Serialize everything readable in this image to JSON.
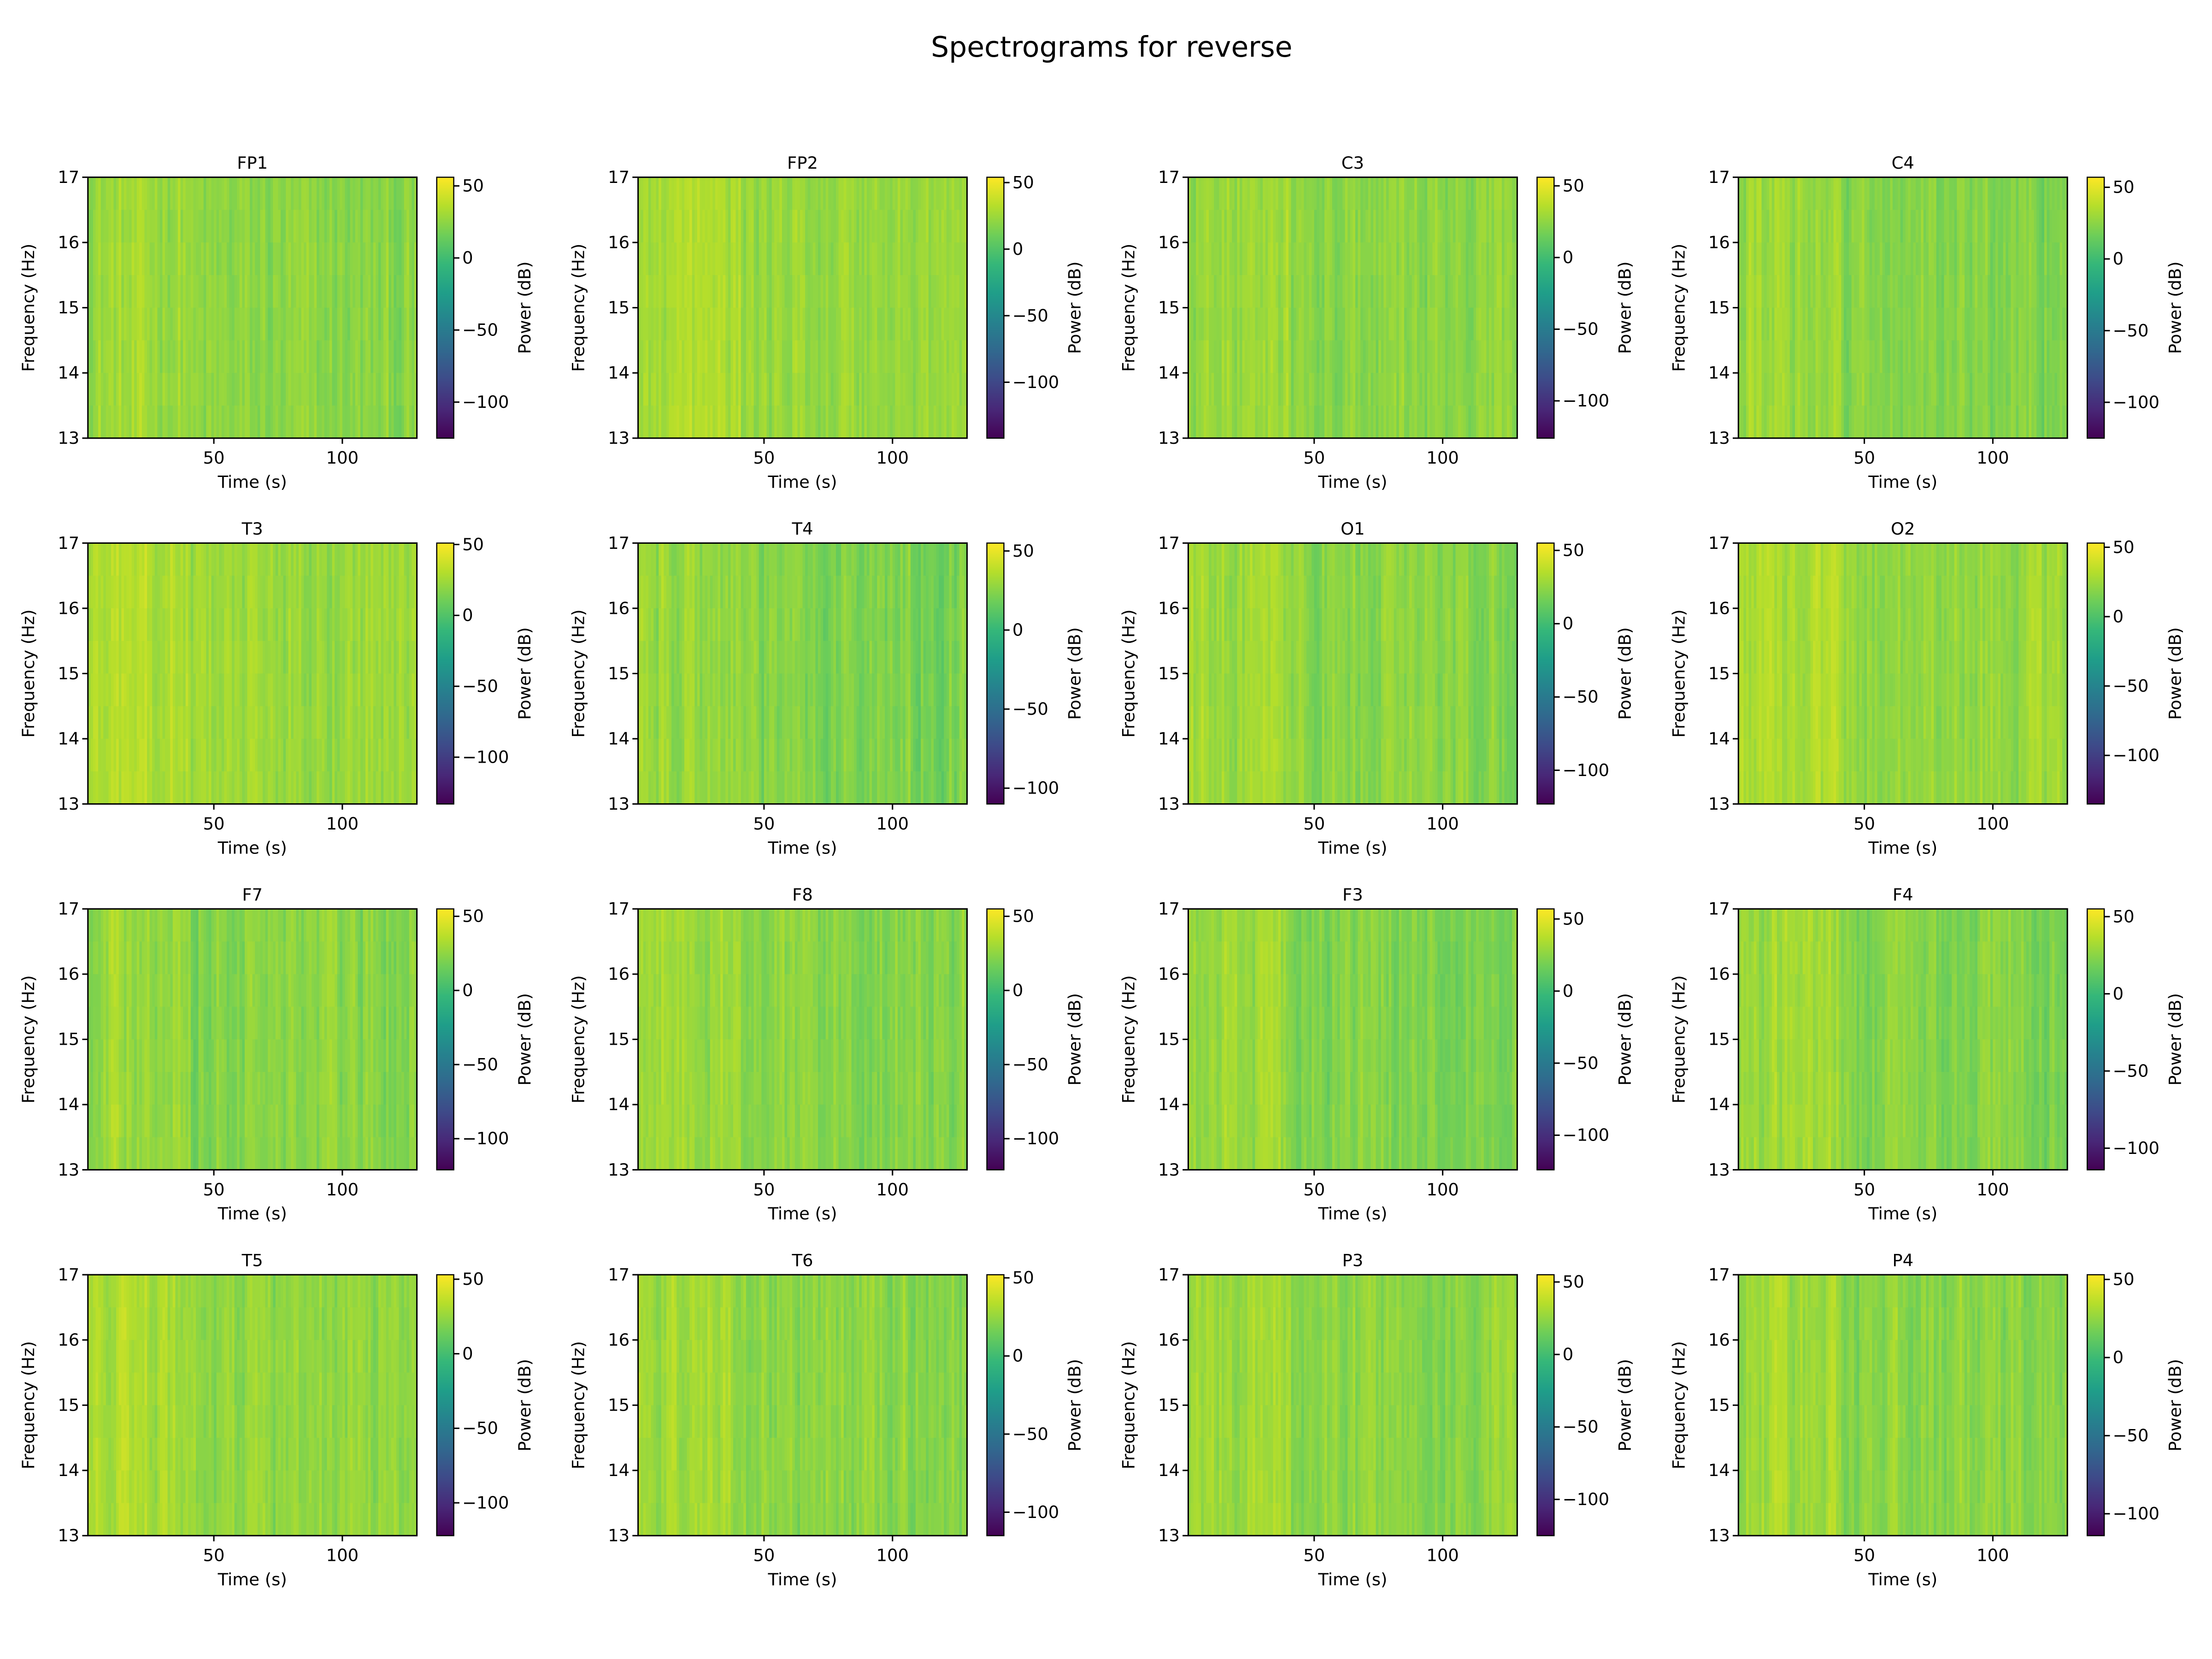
{
  "title": "Spectrograms for reverse",
  "chart_data": {
    "type": "heatmap",
    "colormap": "viridis",
    "xlabel": "Time (s)",
    "ylabel": "Frequency (Hz)",
    "colorbar_label": "Power (dB)",
    "xlim": [
      1,
      129
    ],
    "ylim": [
      13,
      17
    ],
    "xticks": [
      50,
      100
    ],
    "yticks": [
      13,
      14,
      15,
      16,
      17
    ],
    "colorbar_ticks": [
      -100,
      -50,
      0,
      50
    ],
    "panels": [
      {
        "name": "FP1",
        "clim": [
          -125,
          56
        ]
      },
      {
        "name": "FP2",
        "clim": [
          -142,
          54
        ]
      },
      {
        "name": "C3",
        "clim": [
          -126,
          56
        ]
      },
      {
        "name": "C4",
        "clim": [
          -125,
          57
        ]
      },
      {
        "name": "T3",
        "clim": [
          -133,
          51
        ]
      },
      {
        "name": "T4",
        "clim": [
          -110,
          55
        ]
      },
      {
        "name": "O1",
        "clim": [
          -123,
          55
        ]
      },
      {
        "name": "O2",
        "clim": [
          -135,
          53
        ]
      },
      {
        "name": "F7",
        "clim": [
          -121,
          55
        ]
      },
      {
        "name": "F8",
        "clim": [
          -121,
          55
        ]
      },
      {
        "name": "F3",
        "clim": [
          -124,
          57
        ]
      },
      {
        "name": "F4",
        "clim": [
          -114,
          55
        ]
      },
      {
        "name": "T5",
        "clim": [
          -122,
          53
        ]
      },
      {
        "name": "T6",
        "clim": [
          -115,
          52
        ]
      },
      {
        "name": "P3",
        "clim": [
          -125,
          55
        ]
      },
      {
        "name": "P4",
        "clim": [
          -114,
          53
        ]
      }
    ]
  }
}
